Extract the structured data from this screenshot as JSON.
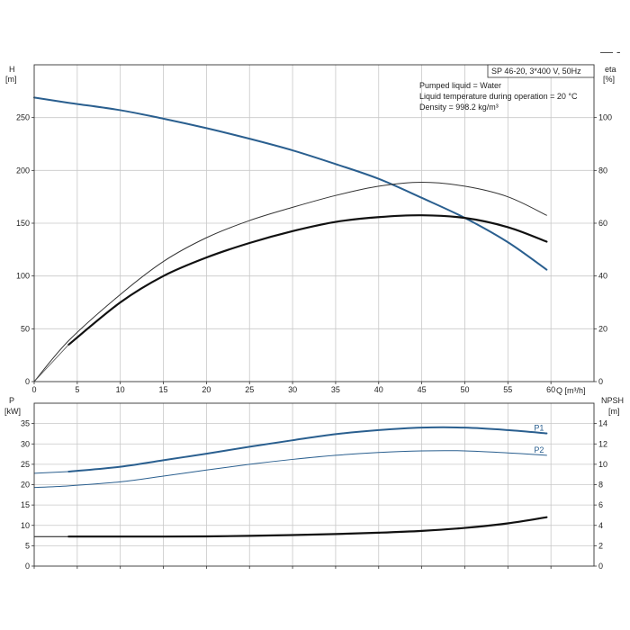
{
  "chart_data": [
    {
      "type": "line",
      "panel": "head-efficiency",
      "xlabel": "Q [m³/h]",
      "left_axis": {
        "label_top": "H",
        "label_unit": "[m]",
        "range": [
          0,
          300
        ],
        "ticks": [
          0,
          50,
          100,
          150,
          200,
          250
        ]
      },
      "right_axis": {
        "label_top": "eta",
        "label_unit": "[%]",
        "range": [
          0,
          120
        ],
        "ticks": [
          0,
          20,
          40,
          60,
          80,
          100
        ]
      },
      "x_range": [
        0,
        65
      ],
      "x_ticks": [
        0,
        5,
        10,
        15,
        20,
        25,
        30,
        35,
        40,
        45,
        50,
        55,
        60
      ],
      "x_tick_labels": [
        "0",
        "5",
        "10",
        "15",
        "20",
        "25",
        "30",
        "35",
        "40",
        "45",
        "50",
        "55",
        "60"
      ],
      "info_box_label": "SP 46-20, 3*400 V, 50Hz",
      "info_lines": [
        "Pumped liquid = Water",
        "Liquid temperature during operation = 20 °C",
        "Density = 998.2 kg/m³"
      ],
      "series": [
        {
          "axis": "left",
          "color": "#2a5f8f",
          "width": 2.0,
          "x": [
            0,
            4,
            10,
            15,
            20,
            25,
            30,
            35,
            40,
            45,
            50,
            55,
            59.5
          ],
          "y": [
            269,
            264,
            257,
            249,
            240,
            230,
            219,
            206,
            192,
            174,
            155,
            132,
            106
          ]
        },
        {
          "axis": "left",
          "color": "#2a5f8f",
          "width": 1.0,
          "x": [
            0,
            4
          ],
          "y": [
            269,
            264
          ]
        },
        {
          "axis": "right",
          "color": "#333333",
          "width": 1.0,
          "x": [
            0,
            4,
            10,
            15,
            20,
            25,
            30,
            35,
            40,
            45,
            50,
            55,
            59.5
          ],
          "y": [
            0,
            15.5,
            33,
            45.5,
            54.5,
            61,
            66,
            70.5,
            74,
            75.5,
            74,
            70,
            63
          ]
        },
        {
          "axis": "right",
          "color": "#111111",
          "width": 2.2,
          "x": [
            4,
            10,
            15,
            20,
            25,
            30,
            35,
            40,
            45,
            50,
            55,
            59.5
          ],
          "y": [
            14,
            30,
            40,
            47,
            52.5,
            57,
            60.5,
            62.3,
            63,
            62,
            58.5,
            53
          ]
        },
        {
          "axis": "right",
          "color": "#555555",
          "width": 0.8,
          "x": [
            0,
            4
          ],
          "y": [
            0,
            14
          ]
        }
      ]
    },
    {
      "type": "line",
      "panel": "power-npsh",
      "left_axis": {
        "label_top": "P",
        "label_unit": "[kW]",
        "range": [
          0,
          40
        ],
        "ticks": [
          0,
          5,
          10,
          15,
          20,
          25,
          30,
          35
        ]
      },
      "right_axis": {
        "label_top": "NPSH",
        "label_unit": "[m]",
        "range": [
          0,
          16
        ],
        "ticks": [
          0,
          2,
          4,
          6,
          8,
          10,
          12,
          14
        ]
      },
      "x_range": [
        0,
        65
      ],
      "x_ticks": [
        0,
        5,
        10,
        15,
        20,
        25,
        30,
        35,
        40,
        45,
        50,
        55,
        60
      ],
      "series": [
        {
          "name": "P1",
          "axis": "left",
          "color": "#2a5f8f",
          "width": 2.0,
          "x": [
            4,
            10,
            15,
            20,
            25,
            30,
            35,
            40,
            45,
            50,
            55,
            59.5
          ],
          "y": [
            23.2,
            24.4,
            26.0,
            27.6,
            29.3,
            30.9,
            32.4,
            33.4,
            34.0,
            34.0,
            33.4,
            32.6
          ]
        },
        {
          "axis": "left",
          "color": "#2a5f8f",
          "width": 1.0,
          "x": [
            0,
            4
          ],
          "y": [
            22.8,
            23.2
          ]
        },
        {
          "name": "P2",
          "axis": "left",
          "color": "#2a5f8f",
          "width": 1.0,
          "x": [
            0,
            4,
            10,
            15,
            20,
            25,
            30,
            35,
            40,
            45,
            50,
            55,
            59.5
          ],
          "y": [
            19.3,
            19.7,
            20.7,
            22.1,
            23.6,
            25.0,
            26.2,
            27.2,
            27.9,
            28.3,
            28.3,
            27.8,
            27.2
          ]
        },
        {
          "axis": "right",
          "color": "#111111",
          "width": 2.2,
          "x": [
            4,
            10,
            15,
            20,
            25,
            30,
            35,
            40,
            45,
            50,
            55,
            59.5
          ],
          "y": [
            2.9,
            2.9,
            2.9,
            2.92,
            2.97,
            3.05,
            3.15,
            3.28,
            3.46,
            3.75,
            4.2,
            4.8
          ]
        },
        {
          "axis": "right",
          "color": "#111111",
          "width": 1.0,
          "x": [
            0,
            4
          ],
          "y": [
            2.9,
            2.9
          ]
        }
      ]
    }
  ],
  "legend_glyph": "— -"
}
